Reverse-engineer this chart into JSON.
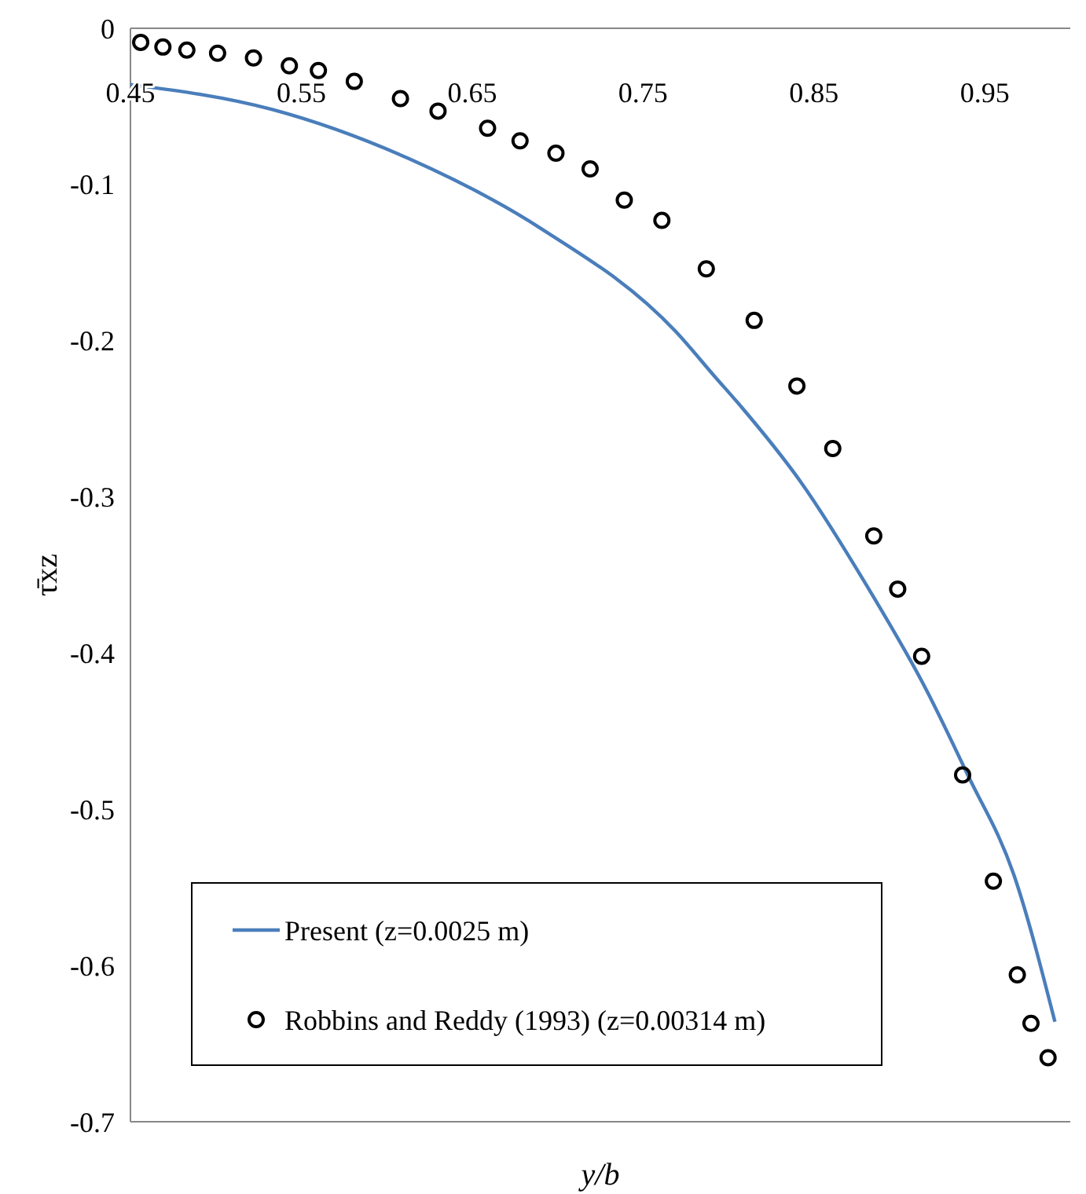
{
  "chart_data": {
    "type": "line",
    "xlabel": "y/b",
    "ylabel": "τ̄xz",
    "xlim": [
      0.45,
      1.0
    ],
    "xticks": [
      0.45,
      0.55,
      0.65,
      0.75,
      0.85,
      0.95
    ],
    "ylim": [
      -0.7,
      0
    ],
    "yticks": [
      0,
      -0.1,
      -0.2,
      -0.3,
      -0.4,
      -0.5,
      -0.6,
      -0.7
    ],
    "grid": false,
    "legend": "bottom left",
    "series": [
      {
        "name": "Present (z=0.0025 m)",
        "type": "line",
        "color": "#4a7ebb",
        "marker": "none",
        "line_style": "solid",
        "x": [
          0.45,
          0.533,
          0.612,
          0.69,
          0.769,
          0.792,
          0.808,
          0.842,
          0.881,
          0.916,
          0.94,
          0.967,
          0.991
        ],
        "values": [
          -0.036,
          -0.052,
          -0.083,
          -0.128,
          -0.194,
          -0.223,
          -0.243,
          -0.29,
          -0.357,
          -0.424,
          -0.478,
          -0.542,
          -0.636
        ]
      },
      {
        "name": "Robbins and Reddy (1993) (z=0.00314 m)",
        "type": "scatter",
        "color": "#000000",
        "marker": "circle",
        "x": [
          0.456,
          0.469,
          0.483,
          0.501,
          0.522,
          0.543,
          0.56,
          0.581,
          0.608,
          0.63,
          0.659,
          0.678,
          0.699,
          0.719,
          0.739,
          0.761,
          0.787,
          0.815,
          0.84,
          0.861,
          0.885,
          0.899,
          0.913,
          0.937,
          0.955,
          0.969,
          0.977,
          0.987
        ],
        "values": [
          -0.009,
          -0.012,
          -0.014,
          -0.016,
          -0.019,
          -0.024,
          -0.027,
          -0.034,
          -0.045,
          -0.053,
          -0.064,
          -0.072,
          -0.08,
          -0.09,
          -0.11,
          -0.123,
          -0.154,
          -0.187,
          -0.229,
          -0.269,
          -0.325,
          -0.359,
          -0.402,
          -0.478,
          -0.546,
          -0.606,
          -0.637,
          -0.659
        ]
      }
    ]
  }
}
